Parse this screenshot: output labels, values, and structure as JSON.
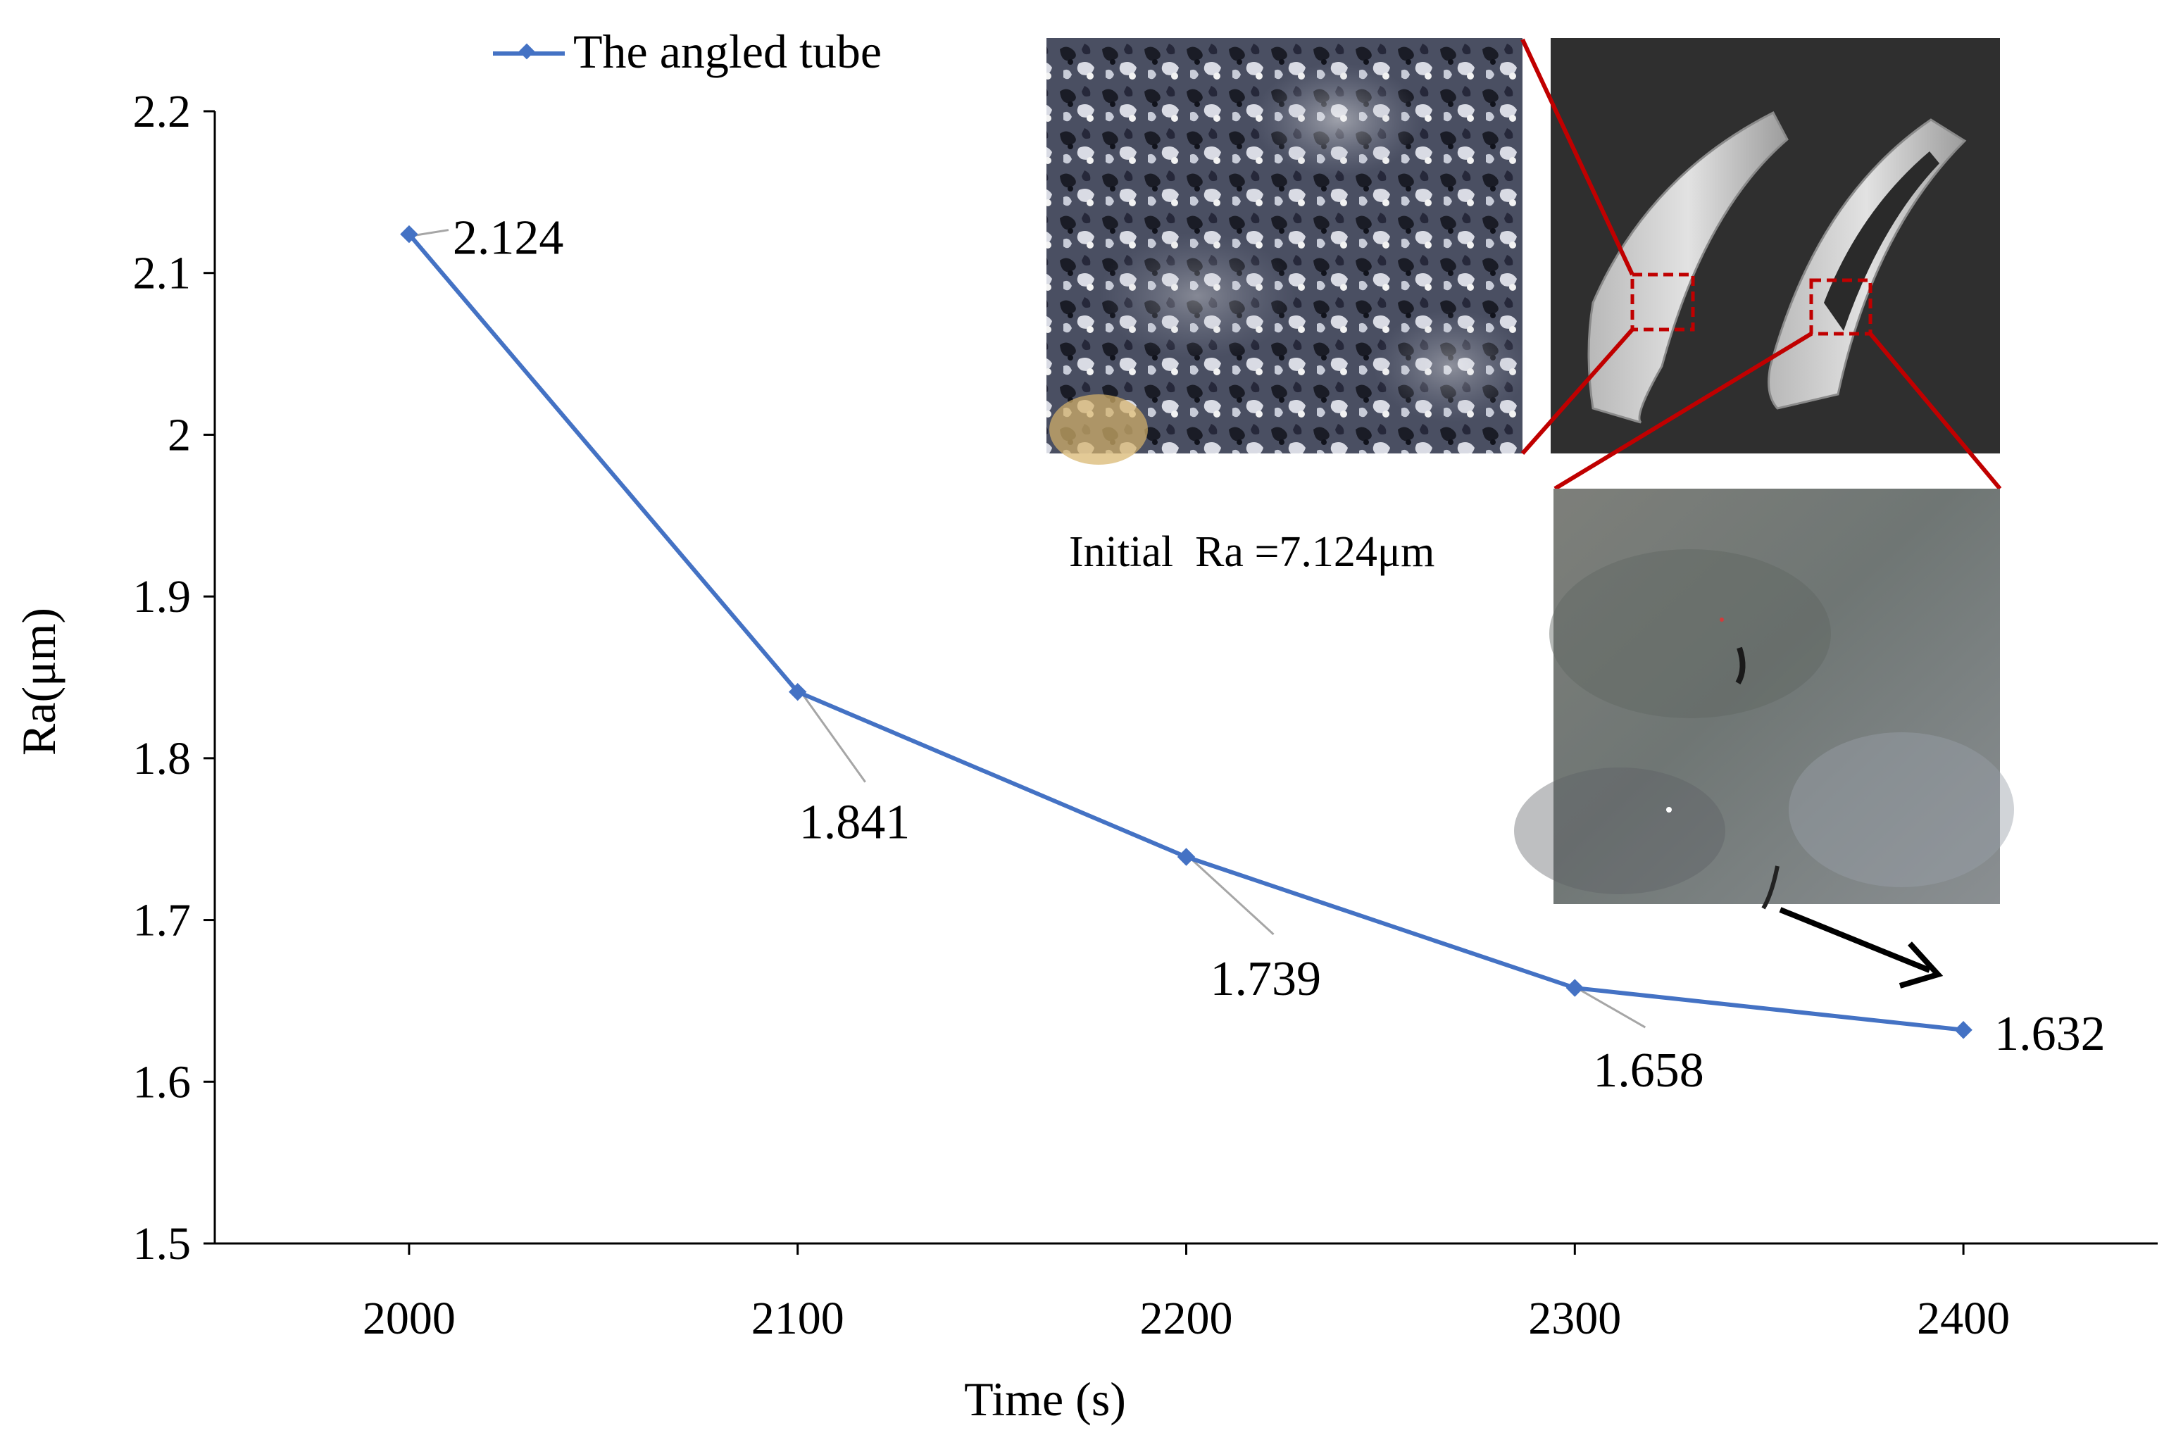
{
  "chart_data": {
    "type": "line",
    "title": "",
    "xlabel": "Time (s)",
    "ylabel": "Ra(μm)",
    "x": [
      2000,
      2100,
      2200,
      2300,
      2400
    ],
    "series": [
      {
        "name": "The angled tube",
        "values": [
          2.124,
          1.841,
          1.739,
          1.658,
          1.632
        ]
      }
    ],
    "data_labels": [
      "2.124",
      "1.841",
      "1.739",
      "1.658",
      "1.632"
    ],
    "xlim": [
      1950,
      2450
    ],
    "ylim": [
      1.5,
      2.2
    ],
    "xticks": [
      "2000",
      "2100",
      "2200",
      "2300",
      "2400"
    ],
    "yticks": [
      "1.5",
      "1.6",
      "1.7",
      "1.8",
      "1.9",
      "2",
      "2.1",
      "2.2"
    ],
    "grid": false,
    "legend_position": "top-left",
    "series_color": "#4472C4"
  },
  "annotations": {
    "initial_roughness": "Initial  Ra =7.124μm"
  },
  "colors": {
    "callout_red": "#C00000",
    "arrow": "#000000",
    "leader_line": "#A6A6A6"
  }
}
